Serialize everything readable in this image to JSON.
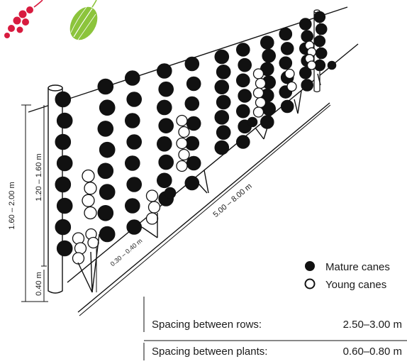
{
  "colors": {
    "mature": "#111111",
    "young": "#ffffff",
    "line": "#111111",
    "berry": "#d81b3f",
    "leaf": "#8cc43c"
  },
  "icons": [
    "redcurrant-icon",
    "gooseberry-icon"
  ],
  "legend": {
    "mature": "Mature canes",
    "young": "Young canes"
  },
  "dimensions": {
    "total_height": "1.60 – 2.00 m",
    "cane_height": "1.20 – 1.60 m",
    "ground_gap": "0.40 m",
    "row_length": "5.00 – 8.00 m",
    "bottom_offset": "0.30 – 0.40 m"
  },
  "spacing": {
    "rows_label": "Spacing between rows:",
    "rows_value": "2.50–3.00 m",
    "plants_label": "Spacing between plants:",
    "plants_value": "0.60–0.80 m"
  }
}
